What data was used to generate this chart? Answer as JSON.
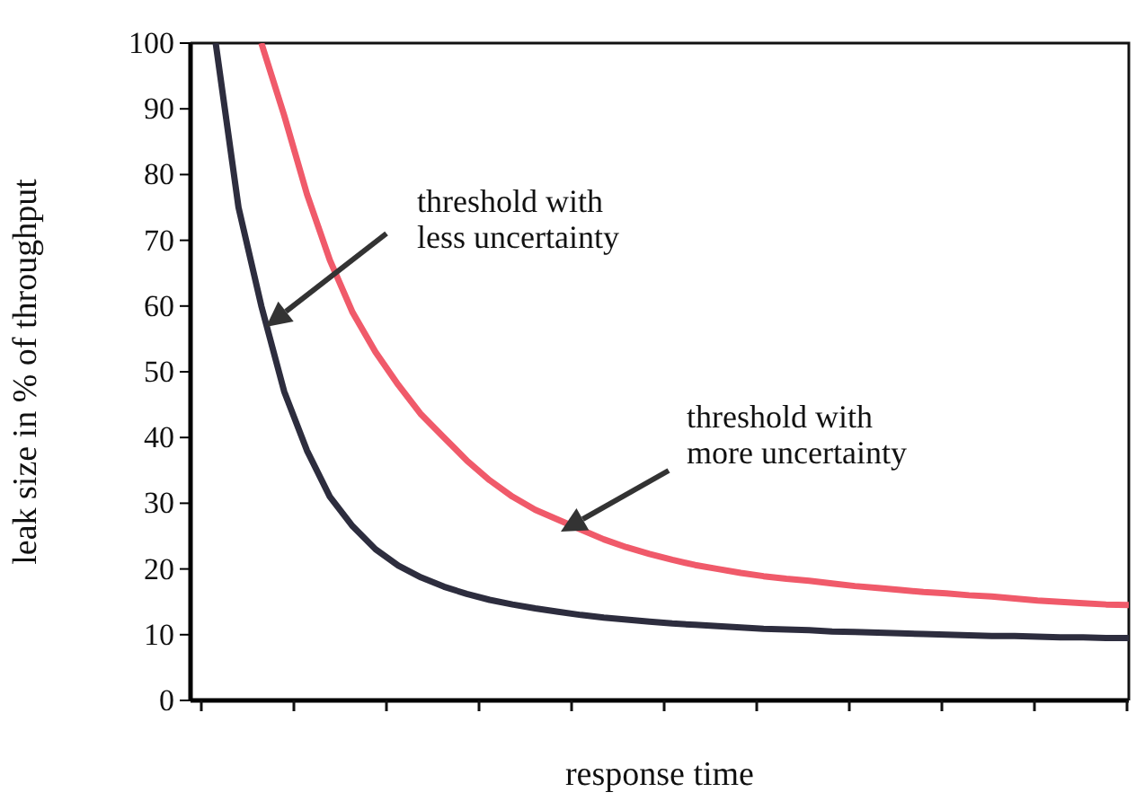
{
  "chart_data": {
    "type": "line",
    "xlabel": "response time",
    "ylabel": "leak size in % of throughput",
    "categories": [
      null,
      null,
      null,
      null,
      null,
      null,
      null,
      null,
      null,
      null,
      null,
      null,
      null,
      null,
      null,
      null,
      null,
      null,
      null,
      null,
      null,
      null,
      null,
      null,
      null,
      null,
      null,
      null,
      null,
      null,
      null,
      null,
      null,
      null,
      null,
      null,
      null,
      null,
      null,
      null,
      null
    ],
    "series": [
      {
        "color": "#2d2d3e",
        "values": [
          100,
          75,
          60,
          47,
          38,
          31,
          26.5,
          23,
          20.5,
          18.7,
          17.3,
          16.2,
          15.3,
          14.6,
          14,
          13.5,
          13,
          12.6,
          12.3,
          12,
          11.7,
          11.5,
          11.3,
          11.1,
          10.9,
          10.8,
          10.7,
          10.5,
          10.4,
          10.3,
          10.2,
          10.1,
          10,
          9.9,
          9.8,
          9.8,
          9.7,
          9.6,
          9.6,
          9.5,
          9.5
        ]
      },
      {
        "color": "#f05a6a",
        "values": [
          null,
          null,
          100,
          89,
          77,
          67,
          59,
          53,
          48,
          43.5,
          40,
          36.5,
          33.5,
          31,
          29,
          27.5,
          26,
          24.5,
          23.3,
          22.3,
          21.4,
          20.6,
          20,
          19.4,
          18.9,
          18.5,
          18.2,
          17.8,
          17.4,
          17.1,
          16.8,
          16.5,
          16.3,
          16,
          15.8,
          15.5,
          15.2,
          15,
          14.8,
          14.6,
          14.5
        ]
      }
    ],
    "ylim": [
      0,
      100
    ],
    "yticks": [
      0,
      10,
      20,
      30,
      40,
      50,
      60,
      70,
      80,
      90,
      100
    ],
    "annotations": [
      "threshold with\nless uncertainty",
      "threshold with\nmore uncertainty"
    ],
    "marker": "none",
    "line_style": "solid",
    "grid": false
  }
}
